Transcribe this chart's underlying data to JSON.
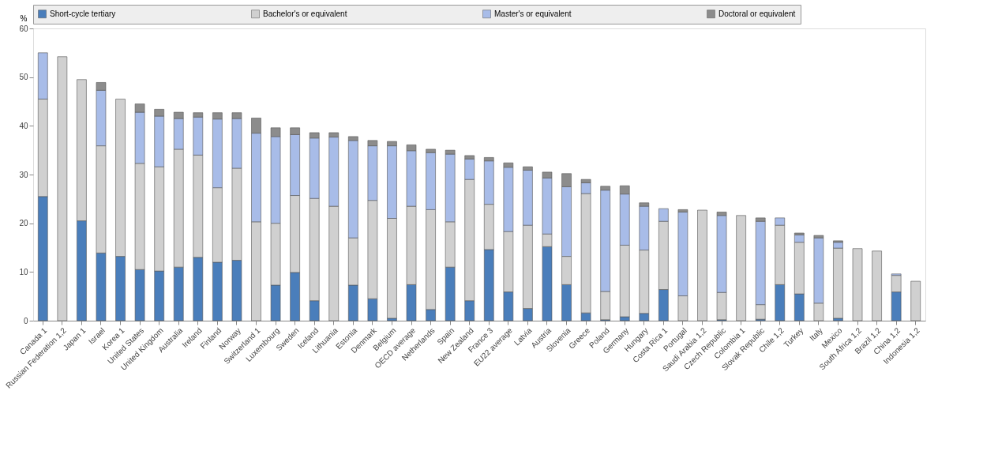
{
  "chart_data": {
    "type": "bar",
    "stacked": true,
    "ylabel": "%",
    "categories": [
      "Canada 1",
      "Russian Federation 1,2",
      "Japan 1",
      "Israel",
      "Korea 1",
      "United States",
      "United Kingdom",
      "Australia",
      "Ireland",
      "Finland",
      "Norway",
      "Switzerland 1",
      "Luxembourg",
      "Sweden",
      "Iceland",
      "Lithuania",
      "Estonia",
      "Denmark",
      "Belgium",
      "OECD average",
      "Netherlands",
      "Spain",
      "New Zealand",
      "France 3",
      "EU22 average",
      "Latvia",
      "Austria",
      "Slovenia",
      "Greece",
      "Poland",
      "Germany",
      "Hungary",
      "Costa Rica 1",
      "Portugal",
      "Saudi Arabia 1,2",
      "Czech Republic",
      "Colombia 1",
      "Slovak Republic",
      "Chile 1,2",
      "Turkey",
      "Italy",
      "Mexico",
      "South Africa 1,2",
      "Brazil 1,2",
      "China 1,2",
      "Indonesia 1,2"
    ],
    "series": [
      {
        "name": "Short-cycle tertiary",
        "color": "#4a7ebb",
        "values": [
          25.5,
          0,
          20.5,
          13.9,
          13.2,
          10.5,
          10.2,
          11.0,
          13.0,
          12.0,
          12.4,
          0,
          7.3,
          9.9,
          4.1,
          0,
          7.3,
          4.5,
          0.5,
          7.4,
          2.3,
          11.0,
          4.1,
          14.6,
          5.9,
          2.5,
          15.2,
          7.4,
          1.6,
          0.2,
          0.8,
          1.5,
          6.4,
          0,
          0,
          0.2,
          0,
          0.3,
          7.4,
          5.5,
          0,
          0.5,
          0,
          0,
          5.9,
          0
        ]
      },
      {
        "name": "Bachelor's or equivalent",
        "color": "#d0d0d0",
        "values": [
          20.0,
          54.2,
          29.0,
          22.0,
          32.3,
          21.8,
          21.4,
          24.2,
          21.0,
          15.3,
          18.9,
          20.3,
          12.7,
          15.8,
          21.0,
          23.5,
          9.7,
          20.2,
          20.5,
          16.1,
          20.5,
          9.3,
          24.9,
          9.3,
          12.4,
          17.1,
          2.6,
          5.8,
          24.5,
          5.8,
          14.7,
          13.0,
          14.0,
          5.1,
          22.7,
          5.6,
          21.6,
          3.0,
          12.2,
          10.6,
          3.6,
          14.4,
          14.8,
          14.3,
          3.4,
          8.1
        ]
      },
      {
        "name": "Master's or equivalent",
        "color": "#a8bce8",
        "values": [
          9.5,
          0,
          0,
          11.4,
          0,
          10.5,
          10.4,
          6.3,
          7.8,
          14.1,
          10.2,
          18.2,
          17.8,
          12.5,
          12.4,
          14.2,
          20.0,
          11.2,
          14.9,
          11.4,
          11.7,
          13.9,
          4.2,
          8.9,
          13.2,
          11.3,
          11.5,
          14.3,
          2.2,
          20.8,
          10.5,
          9.0,
          2.6,
          17.2,
          0,
          15.8,
          0,
          17.1,
          1.5,
          1.5,
          13.4,
          1.2,
          0,
          0,
          0.3,
          0
        ]
      },
      {
        "name": "Doctoral or equivalent",
        "color": "#8c8c8c",
        "values": [
          0,
          0,
          0,
          1.6,
          0,
          1.7,
          1.4,
          1.3,
          0.9,
          1.3,
          1.2,
          3.1,
          1.8,
          1.4,
          1.1,
          0.9,
          0.8,
          1.1,
          0.9,
          1.2,
          0.7,
          0.8,
          0.7,
          0.7,
          0.9,
          0.7,
          1.2,
          2.7,
          0.7,
          0.8,
          1.7,
          0.7,
          0,
          0.5,
          0,
          0.7,
          0,
          0.7,
          0,
          0.4,
          0.5,
          0.3,
          0,
          0,
          0,
          0
        ]
      }
    ],
    "ylim": [
      0,
      60
    ],
    "yticks": [
      0,
      10,
      20,
      30,
      40,
      50,
      60
    ],
    "grid": false,
    "legend": "top"
  }
}
